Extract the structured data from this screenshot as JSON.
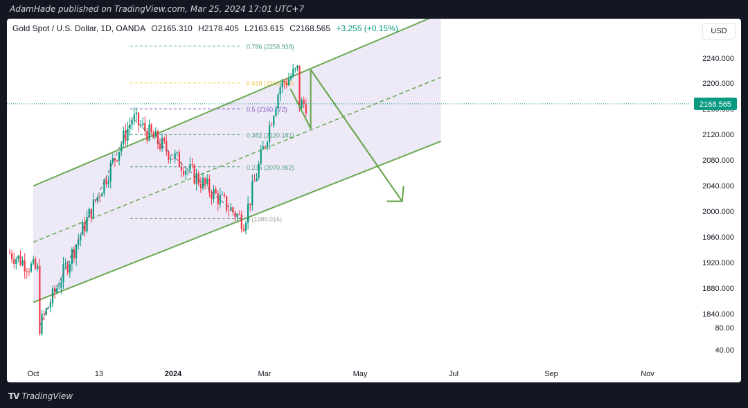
{
  "caption": "AdamHade published on TradingView.com, Mar 25, 2024 17:01 UTC+7",
  "footer": {
    "logo": "TV",
    "brand": "TradingView"
  },
  "legend": {
    "symbol": "Gold Spot / U.S. Dollar, 1D, OANDA",
    "open": "O2165.310",
    "high": "H2178.405",
    "low": "L2163.615",
    "close": "C2168.565",
    "change": "+3.255 (+0.15%)"
  },
  "currency_button": "USD",
  "colors": {
    "up": "#089981",
    "down": "#f23645",
    "channel": "#6aa84f",
    "fib": "#4f9f7a",
    "fib_yellow": "#f2c94c",
    "channel_fill": "#ede9f7"
  },
  "chart_data": {
    "type": "candlestick",
    "symbol": "XAUUSD",
    "last_price": "2168.565",
    "y_axis": {
      "ticks": [
        "2240.000",
        "2200.000",
        "2160.000",
        "2120.000",
        "2080.000",
        "2040.000",
        "2000.000",
        "1960.000",
        "1920.000",
        "1880.000",
        "1840.000",
        "80.00",
        "40.00"
      ]
    },
    "x_axis": {
      "ticks": [
        "Oct",
        "13",
        "2024",
        "Mar",
        "May",
        "Jul",
        "Sep",
        "Nov"
      ]
    },
    "fib_levels": [
      {
        "label": "0.786 (2258.938)",
        "price": 2258.938
      },
      {
        "label": "0.618 (2201.258)",
        "price": 2201.258
      },
      {
        "label": "0.5 (2160.772)",
        "price": 2160.772
      },
      {
        "label": "0.382 (2120.181)",
        "price": 2120.181
      },
      {
        "label": "0.236 (2070.062)",
        "price": 2070.062
      },
      {
        "label": "0 (1989.016)",
        "price": 1989.016
      }
    ],
    "channel": {
      "start": {
        "date": "2023-10-01",
        "lower": 1858,
        "middle": 1952,
        "upper": 2040
      },
      "end": {
        "date": "2024-06-20",
        "lower": 2110,
        "middle": 2210,
        "upper": 2310
      }
    },
    "price_swings": [
      {
        "date": "2023-10-05",
        "price": 1820
      },
      {
        "date": "2023-12-04",
        "price": 2146
      },
      {
        "date": "2024-02-14",
        "price": 1984
      },
      {
        "date": "2024-03-08",
        "price": 2195
      },
      {
        "date": "2024-03-20",
        "price": 2222
      }
    ],
    "projection": [
      {
        "date": "2024-03-15",
        "price": 2192
      },
      {
        "date": "2024-03-28",
        "price": 2130
      },
      {
        "date": "2024-03-28",
        "price": 2222
      },
      {
        "date": "2024-05-26",
        "price": 2016
      }
    ]
  }
}
